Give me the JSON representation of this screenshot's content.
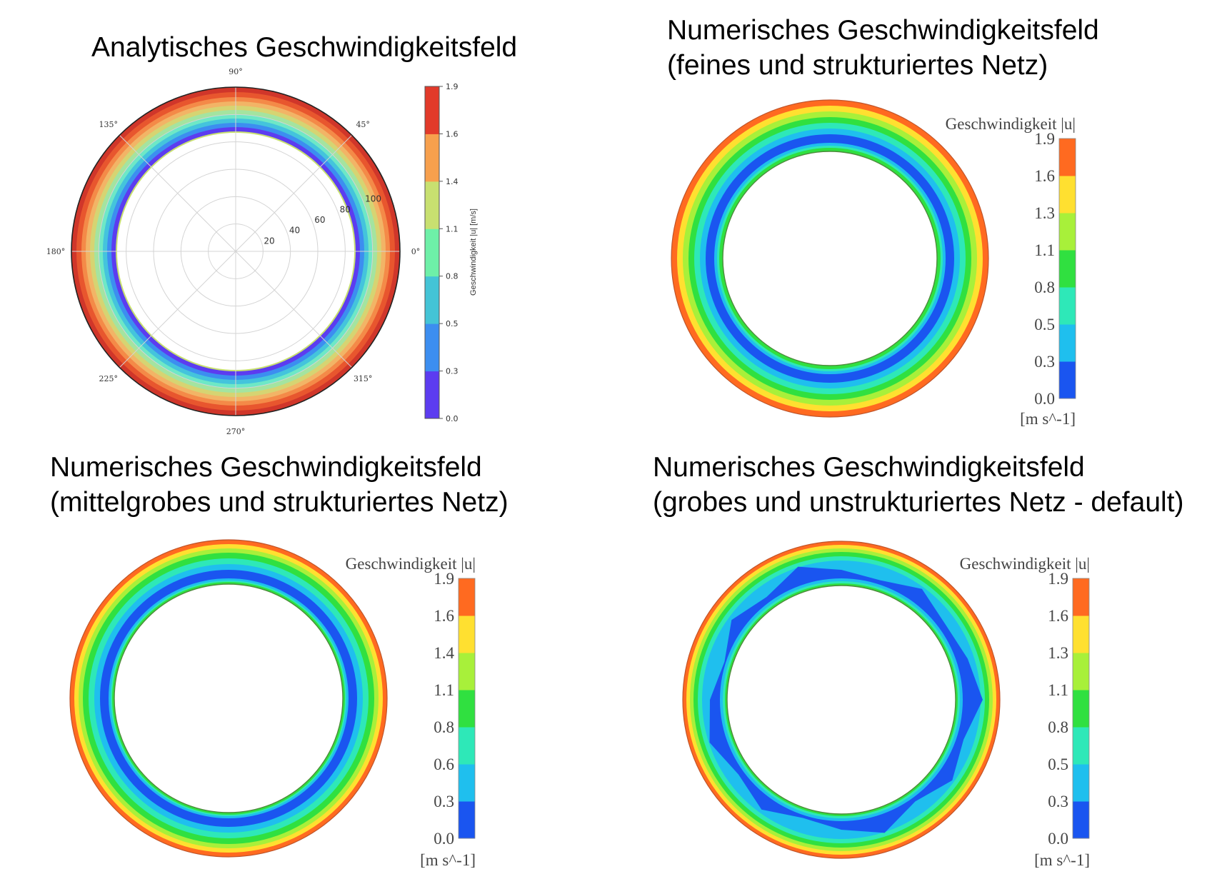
{
  "colors": {
    "analytic_scale": [
      "#5c3cf0",
      "#3c8ef0",
      "#44c4d6",
      "#6ef0a8",
      "#c8e070",
      "#f7a04d",
      "#e23a2a"
    ],
    "numeric_scale": [
      "#1a55f0",
      "#1fbfee",
      "#2ee8b8",
      "#30e040",
      "#a8f03a",
      "#ffe030",
      "#ff6a20"
    ]
  },
  "panels": [
    {
      "id": "analytic",
      "title_lines": [
        "Analytisches Geschwindigkeitsfeld"
      ],
      "polar": {
        "angle_labels": [
          "0°",
          "45°",
          "90°",
          "135°",
          "180°",
          "225°",
          "270°",
          "315°"
        ],
        "radial_ticks": [
          20,
          40,
          60,
          80,
          100
        ],
        "rmax": 120
      },
      "colorbar": {
        "title": "Geschwindigkeit |u| [m/s]",
        "ticks": [
          "0.0",
          "0.3",
          "0.5",
          "0.8",
          "1.1",
          "1.4",
          "1.6",
          "1.9"
        ],
        "unit": ""
      }
    },
    {
      "id": "fine-structured",
      "title_lines": [
        "Numerisches Geschwindigkeitsfeld",
        "(feines und strukturiertes Netz)"
      ],
      "colorbar": {
        "title": "Geschwindigkeit |u|",
        "ticks": [
          "0.0",
          "0.3",
          "0.5",
          "0.8",
          "1.1",
          "1.3",
          "1.6",
          "1.9"
        ],
        "unit": "[m s^-1]"
      }
    },
    {
      "id": "medium-structured",
      "title_lines": [
        "Numerisches Geschwindigkeitsfeld",
        "(mittelgrobes und strukturiertes Netz)"
      ],
      "colorbar": {
        "title": "Geschwindigkeit |u|",
        "ticks": [
          "0.0",
          "0.3",
          "0.6",
          "0.8",
          "1.1",
          "1.4",
          "1.6",
          "1.9"
        ],
        "unit": "[m s^-1]"
      }
    },
    {
      "id": "coarse-unstructured",
      "title_lines": [
        "Numerisches Geschwindigkeitsfeld",
        "(grobes und unstrukturiertes Netz - default)"
      ],
      "colorbar": {
        "title": "Geschwindigkeit |u|",
        "ticks": [
          "0.0",
          "0.3",
          "0.5",
          "0.8",
          "1.1",
          "1.3",
          "1.6",
          "1.9"
        ],
        "unit": "[m s^-1]"
      }
    }
  ]
}
